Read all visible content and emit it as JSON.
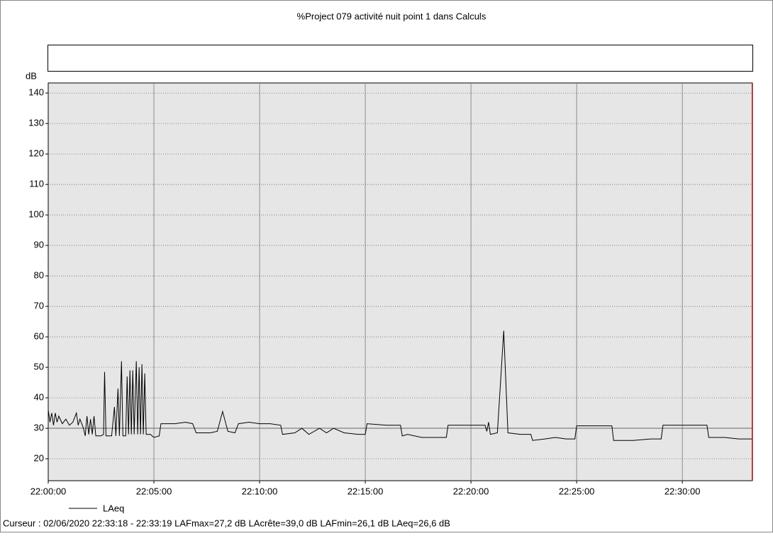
{
  "chart_data": {
    "type": "line",
    "title": "%Project 079 activité nuit point 1 dans Calculs",
    "y_label": "dB",
    "cursor_text": "Curseur : 02/06/2020 22:33:18 - 22:33:19  LAFmax=27,2 dB  LAcrête=39,0 dB  LAFmin=26,1 dB  LAeq=26,6 dB",
    "cursor_x": "22:33:18",
    "reference_line": 30,
    "grid": true,
    "xlim": [
      "22:00:00",
      "22:33:19"
    ],
    "xticks": [
      "22:00:00",
      "22:05:00",
      "22:10:00",
      "22:15:00",
      "22:20:00",
      "22:25:00",
      "22:30:00"
    ],
    "ylim": [
      12.8,
      143.3
    ],
    "yticks": [
      20,
      30,
      40,
      50,
      60,
      70,
      80,
      90,
      100,
      110,
      120,
      130,
      140
    ],
    "x": [
      "22:00:00",
      "22:00:05",
      "22:00:10",
      "22:00:15",
      "22:00:20",
      "22:00:25",
      "22:00:30",
      "22:00:40",
      "22:00:50",
      "22:01:00",
      "22:01:10",
      "22:01:20",
      "22:01:25",
      "22:01:30",
      "22:01:40",
      "22:01:45",
      "22:01:50",
      "22:01:55",
      "22:02:00",
      "22:02:05",
      "22:02:10",
      "22:02:15",
      "22:02:30",
      "22:02:37",
      "22:02:40",
      "22:02:44",
      "22:03:00",
      "22:03:08",
      "22:03:12",
      "22:03:18",
      "22:03:22",
      "22:03:28",
      "22:03:32",
      "22:03:40",
      "22:03:44",
      "22:03:48",
      "22:03:52",
      "22:03:56",
      "22:04:00",
      "22:04:04",
      "22:04:10",
      "22:04:14",
      "22:04:18",
      "22:04:22",
      "22:04:26",
      "22:04:30",
      "22:04:34",
      "22:04:38",
      "22:04:50",
      "22:05:00",
      "22:05:15",
      "22:05:20",
      "22:06:00",
      "22:06:30",
      "22:06:50",
      "22:07:00",
      "22:07:40",
      "22:08:00",
      "22:08:15",
      "22:08:30",
      "22:08:50",
      "22:09:00",
      "22:09:30",
      "22:10:00",
      "22:10:30",
      "22:11:00",
      "22:11:05",
      "22:11:40",
      "22:12:00",
      "22:12:20",
      "22:12:50",
      "22:13:10",
      "22:13:30",
      "22:14:00",
      "22:14:40",
      "22:15:00",
      "22:15:05",
      "22:16:00",
      "22:16:40",
      "22:16:45",
      "22:17:00",
      "22:17:40",
      "22:18:20",
      "22:18:50",
      "22:18:55",
      "22:19:30",
      "22:20:00",
      "22:20:40",
      "22:20:45",
      "22:20:50",
      "22:20:55",
      "22:21:15",
      "22:21:33",
      "22:21:45",
      "22:22:20",
      "22:22:50",
      "22:22:55",
      "22:23:30",
      "22:24:00",
      "22:24:30",
      "22:24:55",
      "22:25:00",
      "22:26:00",
      "22:26:40",
      "22:26:45",
      "22:27:40",
      "22:28:30",
      "22:29:00",
      "22:29:05",
      "22:30:00",
      "22:30:40",
      "22:31:10",
      "22:31:15",
      "22:32:00",
      "22:32:40",
      "22:33:19"
    ],
    "series": [
      {
        "name": "LAeq",
        "color": "#000000",
        "values": [
          36,
          32,
          35,
          31,
          35,
          32,
          34,
          31.5,
          33,
          31,
          32,
          35,
          31,
          33,
          30,
          27.5,
          34,
          28,
          33,
          28,
          34,
          27.5,
          27.5,
          28,
          48.5,
          27.5,
          27.5,
          37,
          27.5,
          43,
          27.5,
          52,
          27.5,
          27.5,
          47,
          28,
          49,
          28,
          49,
          28,
          52,
          28,
          50,
          28,
          51,
          28,
          48,
          28,
          28,
          27,
          27.5,
          31.5,
          31.5,
          32,
          31.5,
          28.5,
          28.5,
          29,
          35.5,
          29,
          28.5,
          31.5,
          32,
          31.5,
          31.5,
          31,
          28,
          28.5,
          30,
          28,
          30,
          28.5,
          30,
          28.5,
          28,
          28,
          31.5,
          31,
          31,
          27.5,
          28,
          27,
          27,
          27,
          31,
          31,
          31,
          31,
          29,
          32,
          28,
          28.5,
          62,
          28.5,
          28,
          28,
          26,
          26.5,
          27,
          26.5,
          26.5,
          30.8,
          30.8,
          30.8,
          26,
          26,
          26.5,
          26.5,
          31,
          31,
          31,
          31,
          27,
          27,
          26.5,
          26.5
        ]
      }
    ]
  }
}
